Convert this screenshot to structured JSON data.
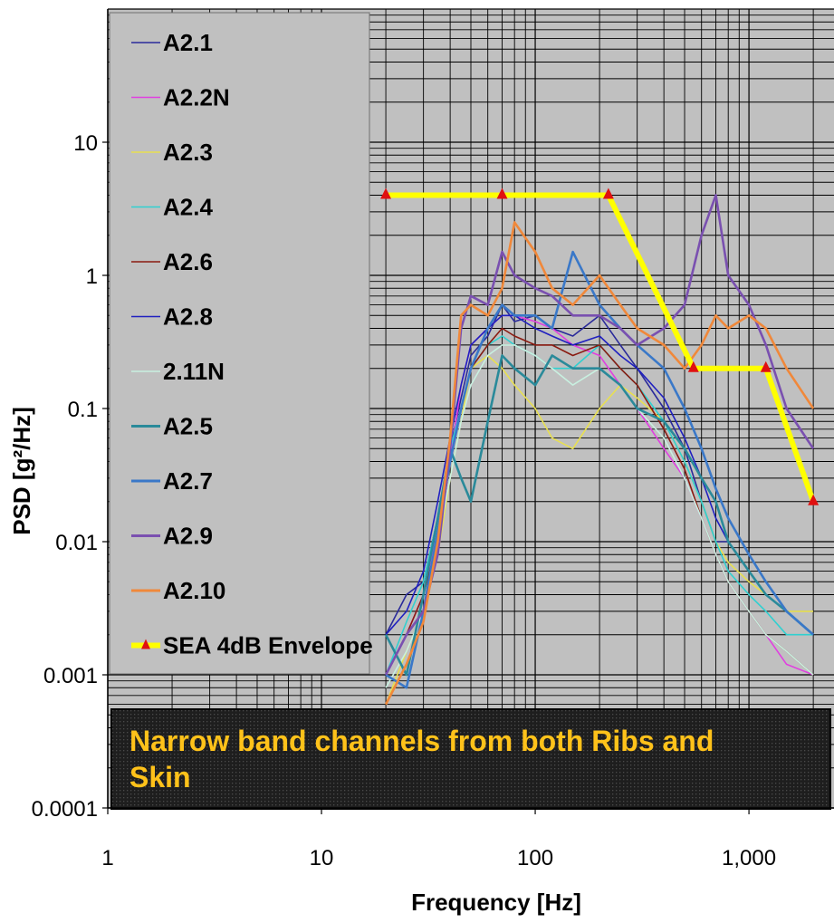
{
  "chart_data": {
    "type": "line",
    "xlabel": "Frequency [Hz]",
    "ylabel": "PSD [g²/Hz]",
    "x_scale": "log",
    "y_scale": "log",
    "xlim": [
      1,
      2500
    ],
    "ylim": [
      0.0001,
      100
    ],
    "x_ticks": [
      1,
      10,
      100,
      1000
    ],
    "x_tick_labels": [
      "1",
      "10",
      "100",
      "1,000"
    ],
    "y_ticks": [
      0.0001,
      0.001,
      0.01,
      0.1,
      1,
      10
    ],
    "y_tick_labels": [
      "0.0001",
      "0.001",
      "0.01",
      "0.1",
      "1",
      "10"
    ],
    "grid": true,
    "plot_background": "#c0c0c0",
    "legend_position": "top-left",
    "annotation": "Narrow band channels from both Ribs and Skin",
    "annotation_color": "#ffc21a",
    "series": [
      {
        "name": "A2.1",
        "color": "#2a2a9a",
        "x": [
          20,
          25,
          30,
          35,
          40,
          45,
          50,
          60,
          70,
          80,
          100,
          120,
          150,
          200,
          250,
          300,
          400,
          500,
          600,
          700,
          800,
          1000,
          1200,
          1500,
          2000
        ],
        "y": [
          0.002,
          0.004,
          0.005,
          0.015,
          0.05,
          0.12,
          0.25,
          0.35,
          0.6,
          0.45,
          0.5,
          0.4,
          0.35,
          0.5,
          0.3,
          0.2,
          0.1,
          0.05,
          0.02,
          0.01,
          0.01,
          0.006,
          0.004,
          0.003,
          0.002
        ]
      },
      {
        "name": "A2.2N",
        "color": "#e040e0",
        "x": [
          20,
          25,
          30,
          35,
          40,
          45,
          50,
          60,
          70,
          80,
          100,
          120,
          150,
          200,
          250,
          300,
          400,
          500,
          600,
          700,
          800,
          1000,
          1200,
          1500,
          2000
        ],
        "y": [
          0.001,
          0.002,
          0.004,
          0.012,
          0.04,
          0.15,
          0.3,
          0.4,
          0.5,
          0.5,
          0.45,
          0.4,
          0.3,
          0.25,
          0.15,
          0.1,
          0.05,
          0.03,
          0.015,
          0.008,
          0.005,
          0.003,
          0.002,
          0.0012,
          0.001
        ]
      },
      {
        "name": "A2.3",
        "color": "#e8e050",
        "x": [
          20,
          25,
          30,
          35,
          40,
          45,
          50,
          60,
          70,
          80,
          100,
          120,
          150,
          200,
          250,
          300,
          400,
          500,
          600,
          700,
          800,
          1000,
          1200,
          1500,
          2000
        ],
        "y": [
          0.0006,
          0.0015,
          0.003,
          0.008,
          0.03,
          0.08,
          0.2,
          0.25,
          0.2,
          0.15,
          0.1,
          0.06,
          0.05,
          0.1,
          0.15,
          0.12,
          0.08,
          0.04,
          0.02,
          0.01,
          0.007,
          0.005,
          0.004,
          0.003,
          0.003
        ]
      },
      {
        "name": "A2.4",
        "color": "#30d0d0",
        "x": [
          20,
          25,
          30,
          35,
          40,
          45,
          50,
          60,
          70,
          80,
          100,
          120,
          150,
          200,
          250,
          300,
          400,
          500,
          600,
          700,
          800,
          1000,
          1200,
          1500,
          2000
        ],
        "y": [
          0.001,
          0.0025,
          0.005,
          0.015,
          0.05,
          0.1,
          0.2,
          0.3,
          0.35,
          0.3,
          0.25,
          0.2,
          0.2,
          0.3,
          0.2,
          0.15,
          0.08,
          0.04,
          0.02,
          0.01,
          0.006,
          0.004,
          0.003,
          0.002,
          0.002
        ]
      },
      {
        "name": "A2.6",
        "color": "#8a1a10",
        "x": [
          20,
          25,
          30,
          35,
          40,
          45,
          50,
          60,
          70,
          80,
          100,
          120,
          150,
          200,
          250,
          300,
          400,
          500,
          600,
          700,
          800,
          1000,
          1200,
          1500,
          2000
        ],
        "y": [
          0.001,
          0.002,
          0.004,
          0.01,
          0.04,
          0.1,
          0.2,
          0.3,
          0.4,
          0.35,
          0.3,
          0.3,
          0.25,
          0.3,
          0.2,
          0.15,
          0.07,
          0.035,
          0.015,
          0.008,
          0.005,
          0.003,
          0.002,
          0.0015,
          0.001
        ]
      },
      {
        "name": "A2.8",
        "color": "#2020c0",
        "x": [
          20,
          25,
          30,
          35,
          40,
          45,
          50,
          60,
          70,
          80,
          100,
          120,
          150,
          200,
          250,
          300,
          400,
          500,
          600,
          700,
          800,
          1000,
          1200,
          1500,
          2000
        ],
        "y": [
          0.002,
          0.003,
          0.006,
          0.02,
          0.06,
          0.15,
          0.3,
          0.4,
          0.5,
          0.5,
          0.4,
          0.35,
          0.3,
          0.35,
          0.25,
          0.2,
          0.12,
          0.06,
          0.03,
          0.015,
          0.01,
          0.006,
          0.004,
          0.003,
          0.002
        ]
      },
      {
        "name": "2.11N",
        "color": "#c8f0e0",
        "x": [
          20,
          25,
          30,
          35,
          40,
          45,
          50,
          60,
          70,
          80,
          100,
          120,
          150,
          200,
          250,
          300,
          400,
          500,
          600,
          700,
          800,
          1000,
          1200,
          1500,
          2000
        ],
        "y": [
          0.0008,
          0.0015,
          0.003,
          0.01,
          0.03,
          0.08,
          0.15,
          0.25,
          0.3,
          0.3,
          0.25,
          0.2,
          0.15,
          0.2,
          0.15,
          0.1,
          0.06,
          0.03,
          0.015,
          0.008,
          0.005,
          0.003,
          0.002,
          0.0015,
          0.001
        ]
      },
      {
        "name": "A2.5",
        "color": "#2a8a9a",
        "x": [
          20,
          25,
          30,
          35,
          40,
          45,
          50,
          60,
          70,
          80,
          100,
          120,
          150,
          200,
          250,
          300,
          400,
          500,
          600,
          700,
          800,
          1000,
          1200,
          1500,
          2000
        ],
        "y": [
          0.002,
          0.001,
          0.004,
          0.015,
          0.05,
          0.03,
          0.02,
          0.08,
          0.25,
          0.2,
          0.15,
          0.25,
          0.2,
          0.2,
          0.15,
          0.1,
          0.08,
          0.05,
          0.03,
          0.02,
          0.01,
          0.006,
          0.004,
          0.003,
          0.002
        ]
      },
      {
        "name": "A2.7",
        "color": "#3a78c8",
        "x": [
          20,
          25,
          30,
          35,
          40,
          45,
          50,
          60,
          70,
          80,
          100,
          120,
          150,
          200,
          250,
          300,
          400,
          500,
          600,
          700,
          800,
          1000,
          1200,
          1500,
          2000
        ],
        "y": [
          0.001,
          0.0008,
          0.003,
          0.012,
          0.04,
          0.1,
          0.2,
          0.4,
          0.6,
          0.5,
          0.5,
          0.4,
          1.5,
          0.6,
          0.4,
          0.3,
          0.2,
          0.1,
          0.05,
          0.025,
          0.015,
          0.008,
          0.005,
          0.003,
          0.002
        ]
      },
      {
        "name": "A2.9",
        "color": "#7a50b0",
        "x": [
          20,
          25,
          30,
          35,
          40,
          45,
          50,
          60,
          70,
          80,
          100,
          120,
          150,
          200,
          250,
          300,
          400,
          500,
          600,
          700,
          800,
          1000,
          1200,
          1500,
          2000
        ],
        "y": [
          0.001,
          0.002,
          0.003,
          0.008,
          0.05,
          0.4,
          0.7,
          0.6,
          1.5,
          1.0,
          0.8,
          0.7,
          0.5,
          0.5,
          0.4,
          0.3,
          0.4,
          0.6,
          2.0,
          4.0,
          1.0,
          0.6,
          0.3,
          0.1,
          0.05
        ]
      },
      {
        "name": "A2.10",
        "color": "#f0883a",
        "x": [
          20,
          25,
          30,
          35,
          40,
          45,
          50,
          60,
          70,
          80,
          100,
          120,
          150,
          200,
          250,
          300,
          400,
          500,
          600,
          700,
          800,
          1000,
          1200,
          1500,
          2000
        ],
        "y": [
          0.0006,
          0.0012,
          0.0025,
          0.01,
          0.06,
          0.5,
          0.6,
          0.5,
          0.8,
          2.5,
          1.5,
          0.8,
          0.6,
          1.0,
          0.6,
          0.4,
          0.3,
          0.2,
          0.3,
          0.5,
          0.4,
          0.5,
          0.4,
          0.2,
          0.1
        ]
      },
      {
        "name": "SEA 4dB Envelope",
        "color": "#ffff00",
        "marker_color": "#e01010",
        "x": [
          20,
          70,
          220,
          550,
          1200,
          2000
        ],
        "y": [
          4.0,
          4.0,
          4.0,
          0.2,
          0.2,
          0.02
        ]
      }
    ]
  }
}
